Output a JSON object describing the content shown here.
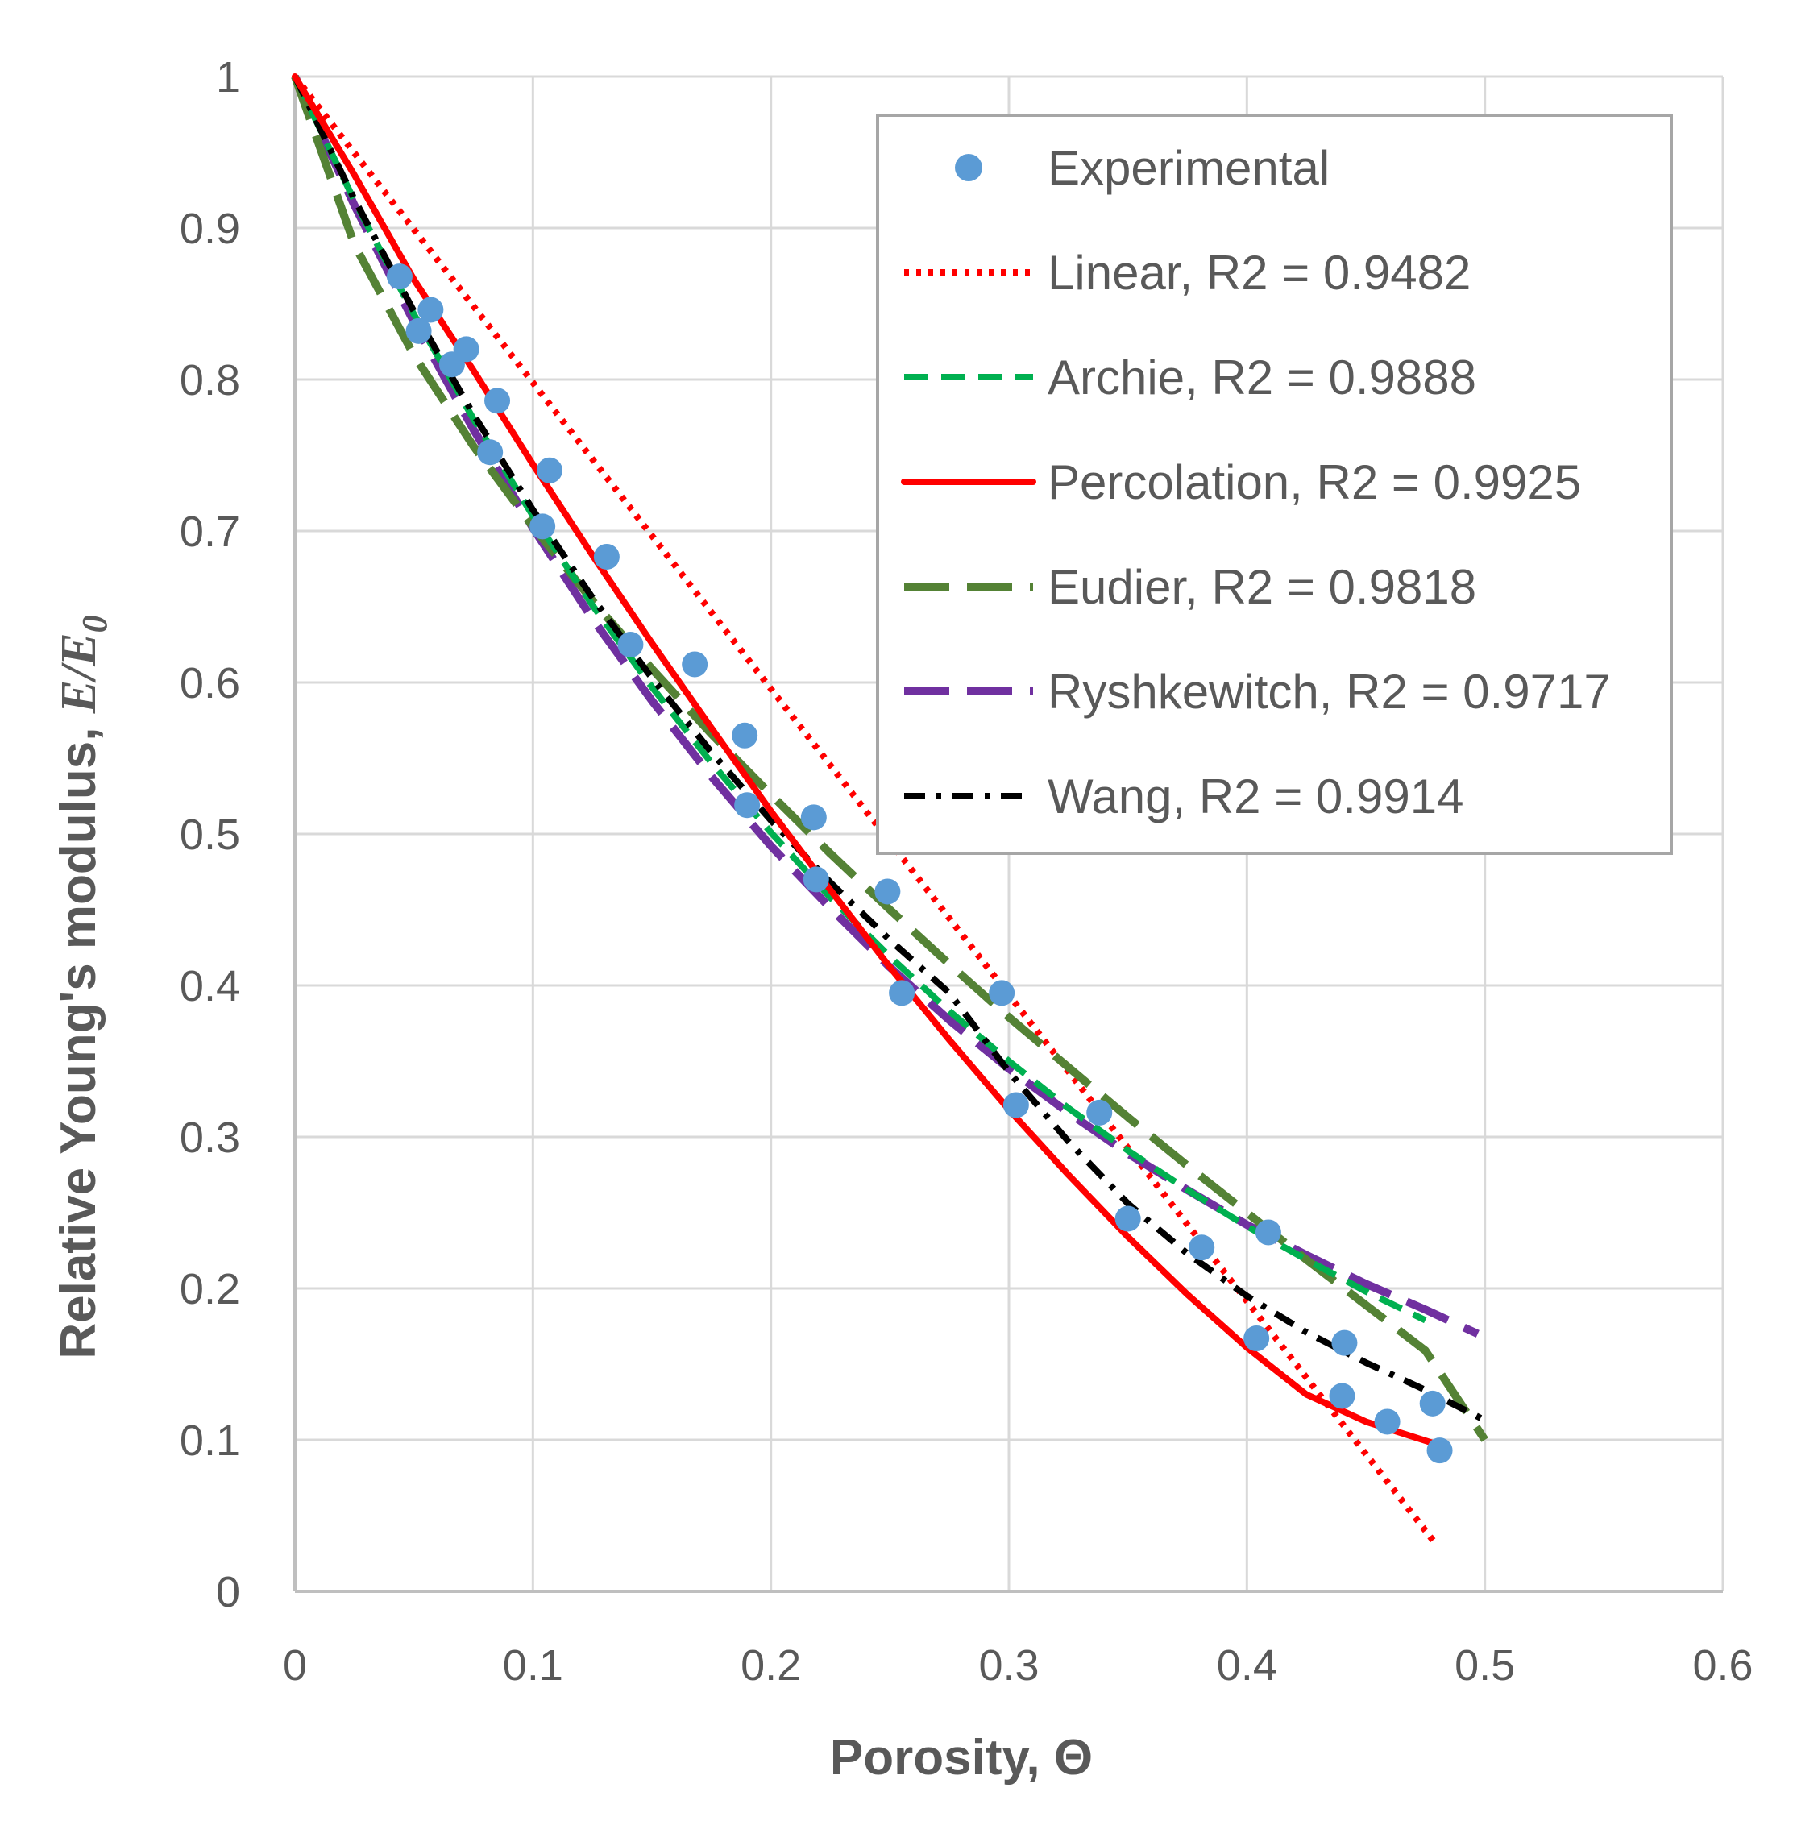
{
  "chart_data": {
    "type": "scatter",
    "title": "",
    "xlabel": "Porosity, Θ",
    "ylabel_text": "Relative Young's modulus, ",
    "ylabel_var": "E/E",
    "ylabel_sub": "0",
    "xlim": [
      0,
      0.6
    ],
    "ylim": [
      0,
      1
    ],
    "x_ticks": [
      0,
      0.1,
      0.2,
      0.3,
      0.4,
      0.5,
      0.6
    ],
    "x_tick_labels": [
      "0",
      "0.1",
      "0.2",
      "0.3",
      "0.4",
      "0.5",
      "0.6"
    ],
    "y_ticks": [
      0,
      0.1,
      0.2,
      0.3,
      0.4,
      0.5,
      0.6,
      0.7,
      0.8,
      0.9,
      1
    ],
    "y_tick_labels": [
      "0",
      "0.1",
      "0.2",
      "0.3",
      "0.4",
      "0.5",
      "0.6",
      "0.7",
      "0.8",
      "0.9",
      "1"
    ],
    "grid": true,
    "legend_position": "top-right",
    "series": [
      {
        "name": "Experimental",
        "legend_label": "Experimental",
        "kind": "markers",
        "color": "#5b9bd5",
        "x": [
          0.044,
          0.052,
          0.057,
          0.066,
          0.072,
          0.085,
          0.082,
          0.107,
          0.104,
          0.131,
          0.141,
          0.168,
          0.189,
          0.19,
          0.218,
          0.219,
          0.249,
          0.255,
          0.297,
          0.303,
          0.338,
          0.35,
          0.381,
          0.409,
          0.404,
          0.441,
          0.44,
          0.459,
          0.478,
          0.481
        ],
        "y": [
          0.868,
          0.832,
          0.846,
          0.81,
          0.82,
          0.786,
          0.752,
          0.74,
          0.703,
          0.683,
          0.625,
          0.612,
          0.565,
          0.519,
          0.511,
          0.47,
          0.462,
          0.395,
          0.395,
          0.321,
          0.316,
          0.246,
          0.227,
          0.237,
          0.167,
          0.164,
          0.129,
          0.112,
          0.124,
          0.093
        ]
      },
      {
        "name": "Linear",
        "legend_label": "Linear, R2 = 0.9482",
        "kind": "line",
        "style": "dotted",
        "color": "#ff0000",
        "x": [
          0,
          0.48
        ],
        "y": [
          1,
          0.03
        ]
      },
      {
        "name": "Archie",
        "legend_label": "Archie, R2 = 0.9888",
        "kind": "line",
        "style": "dashed",
        "color": "#00b050",
        "x": [
          0,
          0.025,
          0.05,
          0.075,
          0.1,
          0.125,
          0.15,
          0.175,
          0.2,
          0.225,
          0.25,
          0.275,
          0.3,
          0.325,
          0.35,
          0.375,
          0.4,
          0.425,
          0.45,
          0.475
        ],
        "y": [
          1,
          0.918,
          0.843,
          0.774,
          0.71,
          0.651,
          0.597,
          0.547,
          0.501,
          0.458,
          0.419,
          0.383,
          0.35,
          0.319,
          0.291,
          0.265,
          0.241,
          0.219,
          0.198,
          0.179
        ]
      },
      {
        "name": "Percolation",
        "legend_label": "Percolation, R2 = 0.9925",
        "kind": "line",
        "style": "solid",
        "color": "#ff0000",
        "x": [
          0,
          0.025,
          0.05,
          0.075,
          0.1,
          0.125,
          0.15,
          0.175,
          0.2,
          0.225,
          0.25,
          0.275,
          0.3,
          0.325,
          0.35,
          0.375,
          0.4,
          0.425,
          0.45,
          0.478
        ],
        "y": [
          1,
          0.935,
          0.866,
          0.806,
          0.744,
          0.684,
          0.626,
          0.57,
          0.515,
          0.463,
          0.412,
          0.364,
          0.318,
          0.275,
          0.234,
          0.196,
          0.161,
          0.13,
          0.112,
          0.098
        ]
      },
      {
        "name": "Eudier",
        "legend_label": "Eudier, R2 = 0.9818",
        "kind": "line",
        "style": "longdash",
        "color": "#548235",
        "x": [
          0,
          0.025,
          0.05,
          0.075,
          0.1,
          0.125,
          0.15,
          0.175,
          0.2,
          0.225,
          0.25,
          0.275,
          0.3,
          0.325,
          0.35,
          0.375,
          0.4,
          0.425,
          0.45,
          0.475,
          0.5
        ],
        "y": [
          1,
          0.889,
          0.816,
          0.756,
          0.703,
          0.654,
          0.609,
          0.566,
          0.526,
          0.487,
          0.45,
          0.414,
          0.379,
          0.346,
          0.313,
          0.281,
          0.25,
          0.219,
          0.189,
          0.159,
          0.1
        ]
      },
      {
        "name": "Ryshkewitch",
        "legend_label": "Ryshkewitch, R2 = 0.9717",
        "kind": "line",
        "style": "longdash",
        "color": "#7030a0",
        "x": [
          0,
          0.025,
          0.05,
          0.075,
          0.1,
          0.125,
          0.15,
          0.175,
          0.2,
          0.225,
          0.25,
          0.275,
          0.3,
          0.325,
          0.35,
          0.375,
          0.4,
          0.425,
          0.45,
          0.475,
          0.497
        ],
        "y": [
          1,
          0.915,
          0.838,
          0.767,
          0.702,
          0.642,
          0.588,
          0.538,
          0.492,
          0.451,
          0.412,
          0.377,
          0.345,
          0.316,
          0.289,
          0.265,
          0.242,
          0.222,
          0.203,
          0.186,
          0.17
        ]
      },
      {
        "name": "Wang",
        "legend_label": "Wang, R2 = 0.9914",
        "kind": "line",
        "style": "dashdot",
        "color": "#000000",
        "x": [
          0,
          0.025,
          0.05,
          0.075,
          0.1,
          0.125,
          0.15,
          0.175,
          0.2,
          0.225,
          0.25,
          0.275,
          0.3,
          0.325,
          0.35,
          0.375,
          0.4,
          0.425,
          0.45,
          0.475,
          0.5
        ],
        "y": [
          1,
          0.919,
          0.845,
          0.777,
          0.714,
          0.656,
          0.603,
          0.554,
          0.509,
          0.468,
          0.43,
          0.395,
          0.343,
          0.297,
          0.256,
          0.223,
          0.195,
          0.171,
          0.151,
          0.133,
          0.113
        ]
      }
    ]
  }
}
